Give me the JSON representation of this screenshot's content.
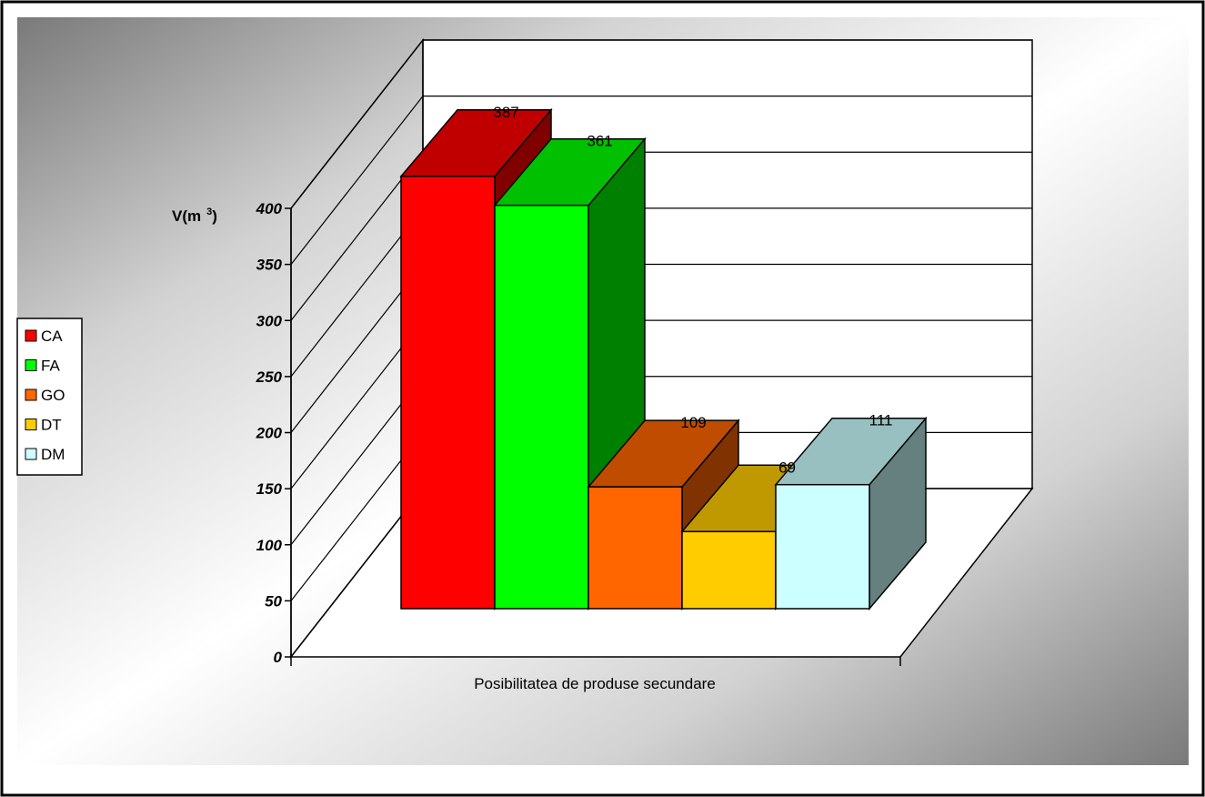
{
  "chart_data": {
    "type": "bar",
    "style": "3d-column",
    "xlabel": "Posibilitatea de produse secundare",
    "ylabel_main": "V(m",
    "ylabel_sup": "3",
    "ylabel_close": ")",
    "ylim": [
      0,
      400
    ],
    "yticks": [
      "0",
      "50",
      "100",
      "150",
      "200",
      "250",
      "300",
      "350",
      "400"
    ],
    "grid": true,
    "legend_position": "left",
    "series": [
      {
        "name": "CA",
        "value": 387,
        "label": "387",
        "color": "#ff0000",
        "side": "#800000",
        "top": "#c00000"
      },
      {
        "name": "FA",
        "value": 361,
        "label": "361",
        "color": "#00ff00",
        "side": "#008000",
        "top": "#00c000"
      },
      {
        "name": "GO",
        "value": 109,
        "label": "109",
        "color": "#ff6600",
        "side": "#803300",
        "top": "#c04c00"
      },
      {
        "name": "DT",
        "value": 69,
        "label": "69",
        "color": "#ffcc00",
        "side": "#806600",
        "top": "#c09900"
      },
      {
        "name": "DM",
        "value": 111,
        "label": "111",
        "color": "#ccffff",
        "side": "#668080",
        "top": "#99c0c0"
      }
    ]
  }
}
